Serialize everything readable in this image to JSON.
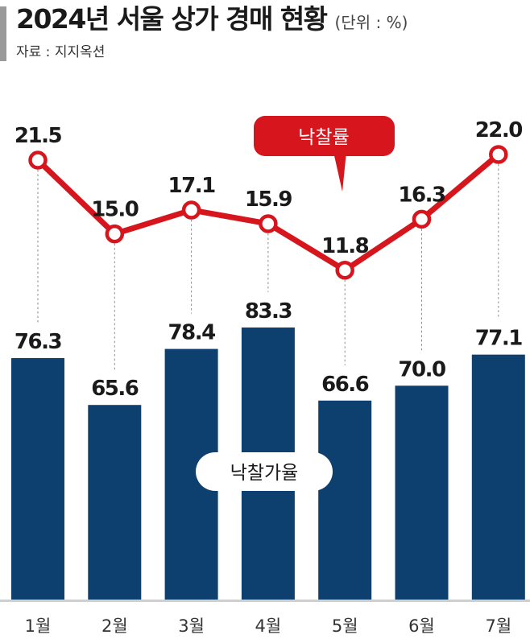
{
  "title": "2024년 서울 상가 경매 현황",
  "unit": "(단위 : %)",
  "source": "자료 : 지지옥션",
  "colors": {
    "bar": "#0d3f6f",
    "line": "#d7151d",
    "guide": "#8a8a8a",
    "axis": "#cfcfcf"
  },
  "chart_data": {
    "type": "bar",
    "categories": [
      "1월",
      "2월",
      "3월",
      "4월",
      "5월",
      "6월",
      "7월"
    ],
    "series": [
      {
        "name": "낙찰가율",
        "type": "bar",
        "values": [
          76.3,
          65.6,
          78.4,
          83.3,
          66.6,
          70.0,
          77.1
        ]
      },
      {
        "name": "낙찰률",
        "type": "line",
        "values": [
          21.5,
          15.0,
          17.1,
          15.9,
          11.8,
          16.3,
          22.0
        ]
      }
    ],
    "value_labels": {
      "bars": [
        "76.3",
        "65.6",
        "78.4",
        "83.3",
        "66.6",
        "70.0",
        "77.1"
      ],
      "line": [
        "21.5",
        "15.0",
        "17.1",
        "15.9",
        "11.8",
        "16.3",
        "22.0"
      ]
    },
    "legend_labels": {
      "bar": "낙찰가율",
      "line": "낙찰률"
    },
    "grid": false
  }
}
